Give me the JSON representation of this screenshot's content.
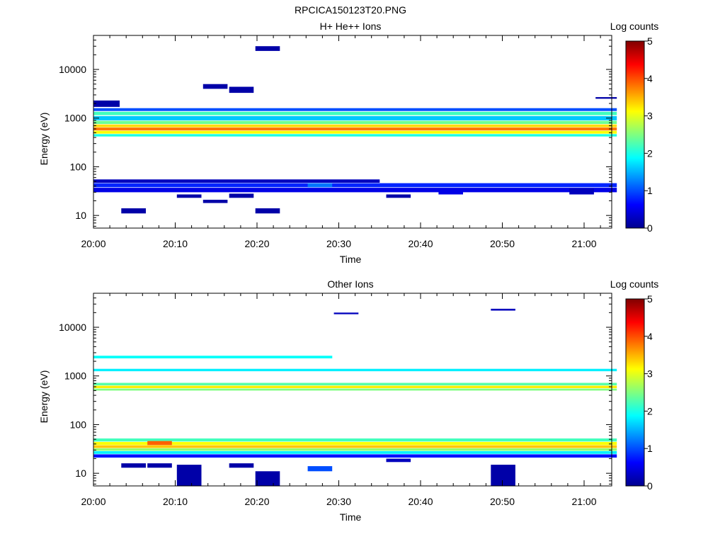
{
  "figure": {
    "file_title": "RPCICA150123T20.PNG"
  },
  "panels": [
    {
      "title": "H+ He++ Ions",
      "xlabel": "Time",
      "ylabel": "Energy (eV)",
      "colorbar_label": "Log counts",
      "colorbar_ticks": [
        "0",
        "1",
        "2",
        "3",
        "4",
        "5"
      ],
      "x_tick_labels": [
        "20:00",
        "20:10",
        "20:20",
        "20:30",
        "20:40",
        "20:50",
        "21:00"
      ],
      "y_tick_labels": [
        "10",
        "100",
        "1000",
        "10000"
      ]
    },
    {
      "title": "Other Ions",
      "xlabel": "Time",
      "ylabel": "Energy (eV)",
      "colorbar_label": "Log counts",
      "colorbar_ticks": [
        "0",
        "1",
        "2",
        "3",
        "4",
        "5"
      ],
      "x_tick_labels": [
        "20:00",
        "20:10",
        "20:20",
        "20:30",
        "20:40",
        "20:50",
        "21:00"
      ],
      "y_tick_labels": [
        "10",
        "100",
        "1000",
        "10000"
      ]
    }
  ],
  "chart_data": [
    {
      "type": "heatmap",
      "title": "H+ He++ Ions",
      "xlabel": "Time",
      "ylabel": "Energy (eV)",
      "colorbar_label": "Log counts",
      "x_range_minutes_after_20_00": [
        0,
        64
      ],
      "y_range_eV": [
        5.5,
        50000
      ],
      "y_scale": "log",
      "color_range": [
        0,
        5
      ],
      "colormap": "jet",
      "cells": [
        {
          "t": [
            0,
            64
          ],
          "e": [
            1150,
            1350
          ],
          "v": 2.2
        },
        {
          "t": [
            0,
            64
          ],
          "e": [
            900,
            1100
          ],
          "v": 1.6
        },
        {
          "t": [
            0,
            64
          ],
          "e": [
            760,
            880
          ],
          "v": 2.4
        },
        {
          "t": [
            0,
            64
          ],
          "e": [
            650,
            740
          ],
          "v": 3.3
        },
        {
          "t": [
            0,
            64
          ],
          "e": [
            560,
            640
          ],
          "v": 3.8
        },
        {
          "t": [
            0,
            64
          ],
          "e": [
            480,
            550
          ],
          "v": 3.1
        },
        {
          "t": [
            0,
            64
          ],
          "e": [
            420,
            470
          ],
          "v": 2.0
        },
        {
          "t": [
            0,
            64
          ],
          "e": [
            1400,
            1600
          ],
          "v": 1.0
        },
        {
          "t": [
            0,
            64
          ],
          "e": [
            38,
            46
          ],
          "v": 0.8
        },
        {
          "t": [
            0,
            64
          ],
          "e": [
            30,
            37
          ],
          "v": 0.5
        },
        {
          "t": [
            0,
            35
          ],
          "e": [
            47,
            55
          ],
          "v": 0.3
        },
        {
          "t": [
            0,
            3.2
          ],
          "e": [
            1700,
            2300
          ],
          "v": 0.2
        },
        {
          "t": [
            3.4,
            6.4
          ],
          "e": [
            11,
            14
          ],
          "v": 0.2
        },
        {
          "t": [
            10.2,
            13.2
          ],
          "e": [
            23,
            27
          ],
          "v": 0.2
        },
        {
          "t": [
            13.4,
            16.4
          ],
          "e": [
            18,
            21
          ],
          "v": 0.2
        },
        {
          "t": [
            16.6,
            19.6
          ],
          "e": [
            23,
            28
          ],
          "v": 0.2
        },
        {
          "t": [
            19.8,
            22.8
          ],
          "e": [
            11,
            14
          ],
          "v": 0.2
        },
        {
          "t": [
            26.2,
            29.2
          ],
          "e": [
            38,
            46
          ],
          "v": 1.2
        },
        {
          "t": [
            35.8,
            38.8
          ],
          "e": [
            23,
            27
          ],
          "v": 0.2
        },
        {
          "t": [
            42.2,
            45.2
          ],
          "e": [
            27,
            36
          ],
          "v": 0.5
        },
        {
          "t": [
            58.2,
            61.2
          ],
          "e": [
            27,
            36
          ],
          "v": 0.3
        },
        {
          "t": [
            16.6,
            19.6
          ],
          "e": [
            3300,
            4400
          ],
          "v": 0.2
        },
        {
          "t": [
            19.8,
            22.8
          ],
          "e": [
            24000,
            30000
          ],
          "v": 0.2
        },
        {
          "t": [
            13.4,
            16.4
          ],
          "e": [
            4000,
            5000
          ],
          "v": 0.2
        },
        {
          "t": [
            61.4,
            64
          ],
          "e": [
            2500,
            2700
          ],
          "v": 0.2
        }
      ]
    },
    {
      "type": "heatmap",
      "title": "Other Ions",
      "xlabel": "Time",
      "ylabel": "Energy (eV)",
      "colorbar_label": "Log counts",
      "x_range_minutes_after_20_00": [
        0,
        64
      ],
      "y_range_eV": [
        5.5,
        50000
      ],
      "y_scale": "log",
      "color_range": [
        0,
        5
      ],
      "colormap": "jet",
      "cells": [
        {
          "t": [
            0,
            29.2
          ],
          "e": [
            2300,
            2600
          ],
          "v": 1.9
        },
        {
          "t": [
            0,
            64
          ],
          "e": [
            1250,
            1400
          ],
          "v": 1.8
        },
        {
          "t": [
            0,
            64
          ],
          "e": [
            640,
            720
          ],
          "v": 2.3
        },
        {
          "t": [
            0,
            64
          ],
          "e": [
            560,
            630
          ],
          "v": 3.2
        },
        {
          "t": [
            0,
            64
          ],
          "e": [
            500,
            550
          ],
          "v": 2.5
        },
        {
          "t": [
            0,
            64
          ],
          "e": [
            38,
            44
          ],
          "v": 3.1
        },
        {
          "t": [
            0,
            64
          ],
          "e": [
            33,
            37.5
          ],
          "v": 3.4
        },
        {
          "t": [
            0,
            64
          ],
          "e": [
            29,
            32.5
          ],
          "v": 2.6
        },
        {
          "t": [
            0,
            64
          ],
          "e": [
            25,
            28.5
          ],
          "v": 1.8
        },
        {
          "t": [
            0,
            64
          ],
          "e": [
            45,
            52
          ],
          "v": 2.2
        },
        {
          "t": [
            0,
            64
          ],
          "e": [
            21,
            24.5
          ],
          "v": 0.7
        },
        {
          "t": [
            6.6,
            9.6
          ],
          "e": [
            38,
            46
          ],
          "v": 3.9
        },
        {
          "t": [
            10.2,
            13.2
          ],
          "e": [
            5.5,
            15
          ],
          "v": 0.2
        },
        {
          "t": [
            19.8,
            22.8
          ],
          "e": [
            5.5,
            11
          ],
          "v": 0.2
        },
        {
          "t": [
            26.2,
            29.2
          ],
          "e": [
            11,
            14
          ],
          "v": 1.0
        },
        {
          "t": [
            29.4,
            32.4
          ],
          "e": [
            18500,
            20000
          ],
          "v": 0.3
        },
        {
          "t": [
            48.6,
            51.6
          ],
          "e": [
            22000,
            24000
          ],
          "v": 0.3
        },
        {
          "t": [
            48.6,
            51.6
          ],
          "e": [
            5.5,
            15
          ],
          "v": 0.2
        },
        {
          "t": [
            35.8,
            38.8
          ],
          "e": [
            17,
            20
          ],
          "v": 0.3
        },
        {
          "t": [
            3.4,
            6.4
          ],
          "e": [
            13,
            16
          ],
          "v": 0.2
        },
        {
          "t": [
            6.6,
            9.6
          ],
          "e": [
            13,
            16
          ],
          "v": 0.2
        },
        {
          "t": [
            16.6,
            19.6
          ],
          "e": [
            13,
            16
          ],
          "v": 0.2
        }
      ]
    }
  ]
}
